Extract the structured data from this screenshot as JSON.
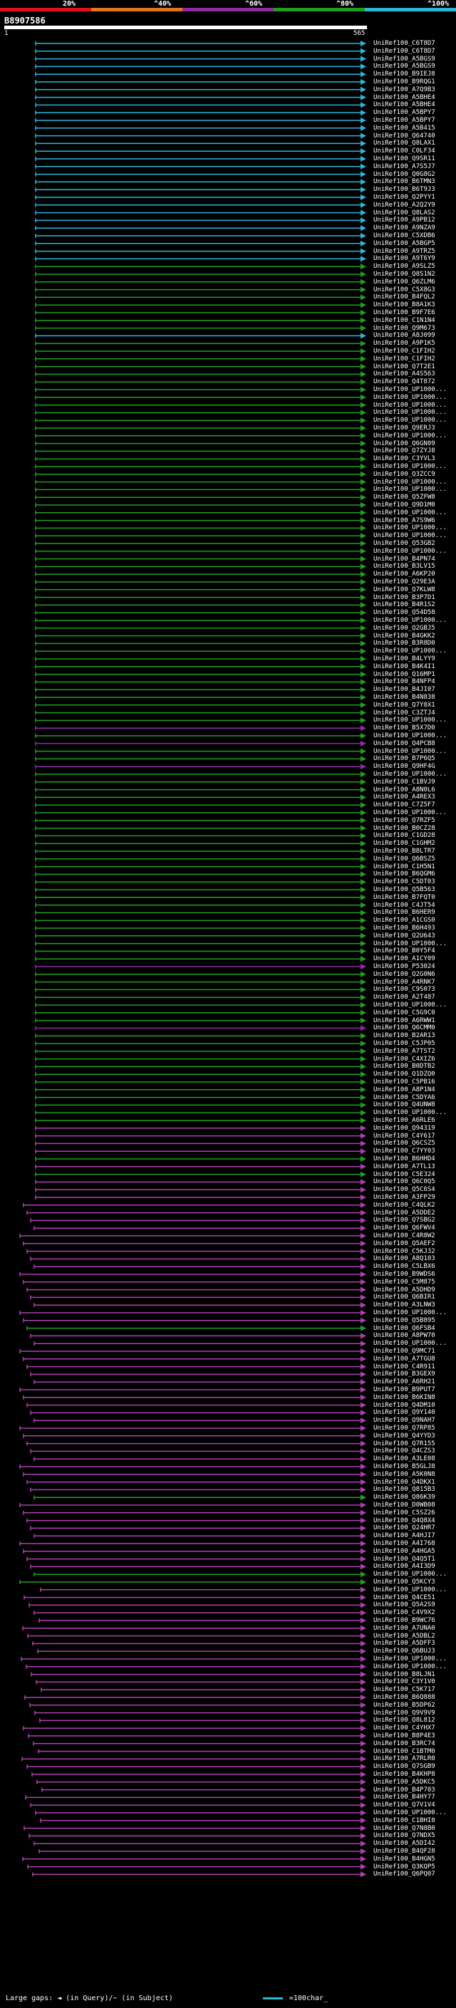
{
  "scale": {
    "labels": [
      "20%",
      "^40%",
      "^60%",
      "^80%",
      "^100%"
    ],
    "segments": [
      {
        "color": "#e01020"
      },
      {
        "color": "#e07818"
      },
      {
        "color": "#8c2ca0"
      },
      {
        "color": "#20a020"
      },
      {
        "color": "#28b8d8"
      }
    ]
  },
  "query": {
    "id": "B8907586",
    "start": "1",
    "end": "565"
  },
  "colors": {
    "cyan": "#28b8d8",
    "green": "#20a020",
    "magenta": "#b040b0",
    "purple": "#8c2ca0"
  },
  "hits": [
    {
      "label": "UniRef100_C6T8D7",
      "color": "cyan"
    },
    {
      "label": "UniRef100_C6T8D7",
      "color": "cyan"
    },
    {
      "label": "UniRef100_A5BGS9",
      "color": "cyan"
    },
    {
      "label": "UniRef100_A5BGS9",
      "color": "cyan"
    },
    {
      "label": "UniRef100_B9IEJ8",
      "color": "cyan"
    },
    {
      "label": "UniRef100_B9RQG1",
      "color": "cyan"
    },
    {
      "label": "UniRef100_A7Q9B3",
      "color": "cyan"
    },
    {
      "label": "UniRef100_A5BHE4",
      "color": "cyan"
    },
    {
      "label": "UniRef100_A5BHE4",
      "color": "cyan"
    },
    {
      "label": "UniRef100_A5BPY7",
      "color": "cyan"
    },
    {
      "label": "UniRef100_A5BPY7",
      "color": "cyan"
    },
    {
      "label": "UniRef100_A5B415",
      "color": "cyan"
    },
    {
      "label": "UniRef100_Q64740",
      "color": "cyan"
    },
    {
      "label": "UniRef100_Q8LAX1",
      "color": "cyan"
    },
    {
      "label": "UniRef100_C0LF34",
      "color": "cyan"
    },
    {
      "label": "UniRef100_Q9SR11",
      "color": "cyan"
    },
    {
      "label": "UniRef100_A7S5J7",
      "color": "cyan"
    },
    {
      "label": "UniRef100_Q0G8G2",
      "color": "cyan"
    },
    {
      "label": "UniRef100_B6TMN3",
      "color": "cyan"
    },
    {
      "label": "UniRef100_B6T9J3",
      "color": "cyan"
    },
    {
      "label": "UniRef100_Q2PYY1",
      "color": "cyan"
    },
    {
      "label": "UniRef100_A2Q2Y9",
      "color": "cyan"
    },
    {
      "label": "UniRef100_Q8LAS2",
      "color": "cyan"
    },
    {
      "label": "UniRef100_A9PB12",
      "color": "cyan"
    },
    {
      "label": "UniRef100_A9NZA9",
      "color": "cyan"
    },
    {
      "label": "UniRef100_C5XDB6",
      "color": "cyan"
    },
    {
      "label": "UniRef100_A5BGP5",
      "color": "cyan"
    },
    {
      "label": "UniRef100_A9TRZ5",
      "color": "cyan"
    },
    {
      "label": "UniRef100_A9T6Y9",
      "color": "cyan"
    },
    {
      "label": "UniRef100_A9SLZ5",
      "color": "green"
    },
    {
      "label": "UniRef100_Q8S1N2",
      "color": "green"
    },
    {
      "label": "UniRef100_Q6ZLM6",
      "color": "green"
    },
    {
      "label": "UniRef100_C5X8G3",
      "color": "green"
    },
    {
      "label": "UniRef100_B4FQL2",
      "color": "green"
    },
    {
      "label": "UniRef100_B8A1K3",
      "color": "green"
    },
    {
      "label": "UniRef100_B9F7E6",
      "color": "green"
    },
    {
      "label": "UniRef100_C1N1N4",
      "color": "green"
    },
    {
      "label": "UniRef100_Q9M673",
      "color": "green"
    },
    {
      "label": "UniRef100_A8J099",
      "color": "cyan"
    },
    {
      "label": "UniRef100_A9P1K5",
      "color": "green"
    },
    {
      "label": "UniRef100_C1FIH2",
      "color": "green"
    },
    {
      "label": "UniRef100_C1FIH2",
      "color": "green"
    },
    {
      "label": "UniRef100_Q7T2E1",
      "color": "green"
    },
    {
      "label": "UniRef100_A4S563",
      "color": "green"
    },
    {
      "label": "UniRef100_Q4T872",
      "color": "green"
    },
    {
      "label": "UniRef100_UP1000...",
      "color": "green"
    },
    {
      "label": "UniRef100_UP1000...",
      "color": "green"
    },
    {
      "label": "UniRef100_UP1000...",
      "color": "green"
    },
    {
      "label": "UniRef100_UP1000...",
      "color": "green"
    },
    {
      "label": "UniRef100_UP1000...",
      "color": "green"
    },
    {
      "label": "UniRef100_Q9ERJ3",
      "color": "green"
    },
    {
      "label": "UniRef100_UP1000...",
      "color": "green"
    },
    {
      "label": "UniRef100_Q6GN09",
      "color": "green"
    },
    {
      "label": "UniRef100_Q7ZYJ8",
      "color": "green"
    },
    {
      "label": "UniRef100_C3YVL3",
      "color": "green"
    },
    {
      "label": "UniRef100_UP1000...",
      "color": "green"
    },
    {
      "label": "UniRef100_Q3ZCC9",
      "color": "green"
    },
    {
      "label": "UniRef100_UP1000...",
      "color": "green"
    },
    {
      "label": "UniRef100_UP1000...",
      "color": "green"
    },
    {
      "label": "UniRef100_Q5ZFW8",
      "color": "green"
    },
    {
      "label": "UniRef100_Q9D1M0",
      "color": "green"
    },
    {
      "label": "UniRef100_UP1000...",
      "color": "green"
    },
    {
      "label": "UniRef100_A7S9W6",
      "color": "green"
    },
    {
      "label": "UniRef100_UP1000...",
      "color": "green"
    },
    {
      "label": "UniRef100_UP1000...",
      "color": "green"
    },
    {
      "label": "UniRef100_Q53GB2",
      "color": "green"
    },
    {
      "label": "UniRef100_UP1000...",
      "color": "green"
    },
    {
      "label": "UniRef100_B4PN74",
      "color": "green"
    },
    {
      "label": "UniRef100_B3LV15",
      "color": "green"
    },
    {
      "label": "UniRef100_A6KP20",
      "color": "green"
    },
    {
      "label": "UniRef100_Q29E3A",
      "color": "green"
    },
    {
      "label": "UniRef100_Q7KLW8",
      "color": "green"
    },
    {
      "label": "UniRef100_B3P7D1",
      "color": "green"
    },
    {
      "label": "UniRef100_B4R1S2",
      "color": "green"
    },
    {
      "label": "UniRef100_Q54D58",
      "color": "green"
    },
    {
      "label": "UniRef100_UP1000...",
      "color": "green"
    },
    {
      "label": "UniRef100_Q2GBJ5",
      "color": "green"
    },
    {
      "label": "UniRef100_B4GKK2",
      "color": "green"
    },
    {
      "label": "UniRef100_B3R8D0",
      "color": "green"
    },
    {
      "label": "UniRef100_UP1000...",
      "color": "green"
    },
    {
      "label": "UniRef100_B4LYY9",
      "color": "green"
    },
    {
      "label": "UniRef100_B4K4I1",
      "color": "green"
    },
    {
      "label": "UniRef100_Q16MP1",
      "color": "green"
    },
    {
      "label": "UniRef100_B4NFP4",
      "color": "green"
    },
    {
      "label": "UniRef100_B4JI07",
      "color": "green"
    },
    {
      "label": "UniRef100_B4N838",
      "color": "green"
    },
    {
      "label": "UniRef100_Q7Y8X1",
      "color": "green"
    },
    {
      "label": "UniRef100_C3ZTJ4",
      "color": "green"
    },
    {
      "label": "UniRef100_UP1000...",
      "color": "green"
    },
    {
      "label": "UniRef100_B5X7D0",
      "color": "purple"
    },
    {
      "label": "UniRef100_UP1000...",
      "color": "green"
    },
    {
      "label": "UniRef100_Q4PCB8",
      "color": "purple"
    },
    {
      "label": "UniRef100_UP1000...",
      "color": "green"
    },
    {
      "label": "UniRef100_B7P6Q5",
      "color": "green"
    },
    {
      "label": "UniRef100_Q9HF4G",
      "color": "purple"
    },
    {
      "label": "UniRef100_UP1000...",
      "color": "green"
    },
    {
      "label": "UniRef100_C1BVJ9",
      "color": "green"
    },
    {
      "label": "UniRef100_A8N0L6",
      "color": "green"
    },
    {
      "label": "UniRef100_A4REX3",
      "color": "green"
    },
    {
      "label": "UniRef100_C7Z5F7",
      "color": "green"
    },
    {
      "label": "UniRef100_UP1000...",
      "color": "green"
    },
    {
      "label": "UniRef100_Q7RZF5",
      "color": "green"
    },
    {
      "label": "UniRef100_B0CZ28",
      "color": "green"
    },
    {
      "label": "UniRef100_C1GD28",
      "color": "green"
    },
    {
      "label": "UniRef100_C1GHM2",
      "color": "green"
    },
    {
      "label": "UniRef100_B8LTR7",
      "color": "green"
    },
    {
      "label": "UniRef100_Q6BSZ5",
      "color": "green"
    },
    {
      "label": "UniRef100_C1H5N1",
      "color": "green"
    },
    {
      "label": "UniRef100_B6QGM6",
      "color": "green"
    },
    {
      "label": "UniRef100_C5DT03",
      "color": "green"
    },
    {
      "label": "UniRef100_Q5B563",
      "color": "green"
    },
    {
      "label": "UniRef100_B7FQT0",
      "color": "green"
    },
    {
      "label": "UniRef100_C4JT54",
      "color": "green"
    },
    {
      "label": "UniRef100_B6HER9",
      "color": "green"
    },
    {
      "label": "UniRef100_A1CGS0",
      "color": "green"
    },
    {
      "label": "UniRef100_B6H493",
      "color": "green"
    },
    {
      "label": "UniRef100_Q2U643",
      "color": "green"
    },
    {
      "label": "UniRef100_UP1000...",
      "color": "green"
    },
    {
      "label": "UniRef100_B0Y5F4",
      "color": "green"
    },
    {
      "label": "UniRef100_A1CY09",
      "color": "green"
    },
    {
      "label": "UniRef100_P53024",
      "color": "purple"
    },
    {
      "label": "UniRef100_Q2G0N6",
      "color": "green"
    },
    {
      "label": "UniRef100_A4RNK7",
      "color": "green"
    },
    {
      "label": "UniRef100_C9S073",
      "color": "green"
    },
    {
      "label": "UniRef100_A2T487",
      "color": "green"
    },
    {
      "label": "UniRef100_UP1000...",
      "color": "green"
    },
    {
      "label": "UniRef100_C5G9C0",
      "color": "green"
    },
    {
      "label": "UniRef100_A6RWW1",
      "color": "green"
    },
    {
      "label": "UniRef100_Q6CMM0",
      "color": "purple"
    },
    {
      "label": "UniRef100_B2AR13",
      "color": "green"
    },
    {
      "label": "UniRef100_C5JP05",
      "color": "green"
    },
    {
      "label": "UniRef100_A7TST2",
      "color": "green"
    },
    {
      "label": "UniRef100_C4XIZ6",
      "color": "green"
    },
    {
      "label": "UniRef100_B0DTB2",
      "color": "green"
    },
    {
      "label": "UniRef100_Q1DZQ0",
      "color": "green"
    },
    {
      "label": "UniRef100_C5PB16",
      "color": "green"
    },
    {
      "label": "UniRef100_A8P1N4",
      "color": "green"
    },
    {
      "label": "UniRef100_C5DYA6",
      "color": "green"
    },
    {
      "label": "UniRef100_Q4UNW8",
      "color": "green"
    },
    {
      "label": "UniRef100_UP1000...",
      "color": "green"
    },
    {
      "label": "UniRef100_A6RLE6",
      "color": "green"
    },
    {
      "label": "UniRef100_Q94319",
      "color": "magenta"
    },
    {
      "label": "UniRef100_C4Y617",
      "color": "magenta"
    },
    {
      "label": "UniRef100_Q6CSZ5",
      "color": "magenta"
    },
    {
      "label": "UniRef100_C7YY03",
      "color": "magenta"
    },
    {
      "label": "UniRef100_B6HHD4",
      "color": "green"
    },
    {
      "label": "UniRef100_A7TL13",
      "color": "magenta"
    },
    {
      "label": "UniRef100_C5E324",
      "color": "green"
    },
    {
      "label": "UniRef100_Q6C0Q5",
      "color": "magenta"
    },
    {
      "label": "UniRef100_Q5C6S4",
      "color": "magenta"
    },
    {
      "label": "UniRef100_A3FP29",
      "color": "magenta"
    },
    {
      "label": "UniRef100_C4QLK2",
      "color": "magenta"
    },
    {
      "label": "UniRef100_A5DDE2",
      "color": "magenta"
    },
    {
      "label": "UniRef100_Q7SBG2",
      "color": "magenta"
    },
    {
      "label": "UniRef100_Q6FWV4",
      "color": "magenta"
    },
    {
      "label": "UniRef100_C4R8W2",
      "color": "magenta"
    },
    {
      "label": "UniRef100_Q5AEF2",
      "color": "magenta"
    },
    {
      "label": "UniRef100_C5KJ32",
      "color": "magenta"
    },
    {
      "label": "UniRef100_A8Q103",
      "color": "magenta"
    },
    {
      "label": "UniRef100_C5LBX6",
      "color": "magenta"
    },
    {
      "label": "UniRef100_B9WDS6",
      "color": "magenta"
    },
    {
      "label": "UniRef100_C5M875",
      "color": "magenta"
    },
    {
      "label": "UniRef100_A5DHD9",
      "color": "magenta"
    },
    {
      "label": "UniRef100_Q6BIR1",
      "color": "magenta"
    },
    {
      "label": "UniRef100_A3LNW3",
      "color": "magenta"
    },
    {
      "label": "UniRef100_UP1000...",
      "color": "magenta"
    },
    {
      "label": "UniRef100_Q5B895",
      "color": "magenta"
    },
    {
      "label": "UniRef100_Q6FSB4",
      "color": "green"
    },
    {
      "label": "UniRef100_A8PW70",
      "color": "magenta"
    },
    {
      "label": "UniRef100_UP1000...",
      "color": "magenta"
    },
    {
      "label": "UniRef100_Q9MC71",
      "color": "magenta"
    },
    {
      "label": "UniRef100_A7TGU8",
      "color": "magenta"
    },
    {
      "label": "UniRef100_C4R911",
      "color": "magenta"
    },
    {
      "label": "UniRef100_B3GEX9",
      "color": "magenta"
    },
    {
      "label": "UniRef100_A6RH21",
      "color": "magenta"
    },
    {
      "label": "UniRef100_B9PUT7",
      "color": "magenta"
    },
    {
      "label": "UniRef100_B6KIN8",
      "color": "magenta"
    },
    {
      "label": "UniRef100_Q4DM10",
      "color": "magenta"
    },
    {
      "label": "UniRef100_Q9Y140",
      "color": "magenta"
    },
    {
      "label": "UniRef100_Q9NAH7",
      "color": "magenta"
    },
    {
      "label": "UniRef100_Q7RP85",
      "color": "magenta"
    },
    {
      "label": "UniRef100_Q4YYD3",
      "color": "magenta"
    },
    {
      "label": "UniRef100_Q7R155",
      "color": "magenta"
    },
    {
      "label": "UniRef100_Q4CZS3",
      "color": "magenta"
    },
    {
      "label": "UniRef100_A3LE08",
      "color": "magenta"
    },
    {
      "label": "UniRef100_B5GLJ8",
      "color": "magenta"
    },
    {
      "label": "UniRef100_A5K0N8",
      "color": "magenta"
    },
    {
      "label": "UniRef100_Q4DKX1",
      "color": "magenta"
    },
    {
      "label": "UniRef100_Q815B3",
      "color": "magenta"
    },
    {
      "label": "UniRef100_Q86K39",
      "color": "green"
    },
    {
      "label": "UniRef100_D0WB08",
      "color": "magenta"
    },
    {
      "label": "UniRef100_C5SZ26",
      "color": "magenta"
    },
    {
      "label": "UniRef100_Q4Q8X4",
      "color": "magenta"
    },
    {
      "label": "UniRef100_Q24HR7",
      "color": "magenta"
    },
    {
      "label": "UniRef100_A4HJI7",
      "color": "magenta"
    },
    {
      "label": "UniRef100_A4I768",
      "color": "magenta"
    },
    {
      "label": "UniRef100_A4HGA5",
      "color": "magenta"
    },
    {
      "label": "UniRef100_Q4Q5T1",
      "color": "magenta"
    },
    {
      "label": "UniRef100_A4I3D9",
      "color": "magenta"
    },
    {
      "label": "UniRef100_UP1000...",
      "color": "green"
    },
    {
      "label": "UniRef100_Q5KCY3",
      "color": "green"
    },
    {
      "label": "UniRef100_UP1000...",
      "color": "magenta"
    },
    {
      "label": "UniRef100_Q4CE51",
      "color": "magenta"
    },
    {
      "label": "UniRef100_Q5A2S9",
      "color": "magenta"
    },
    {
      "label": "UniRef100_C4V9X2",
      "color": "magenta"
    },
    {
      "label": "UniRef100_B9WC76",
      "color": "magenta"
    },
    {
      "label": "UniRef100_A7UNA0",
      "color": "magenta"
    },
    {
      "label": "UniRef100_A5DBL2",
      "color": "magenta"
    },
    {
      "label": "UniRef100_A5DFF3",
      "color": "magenta"
    },
    {
      "label": "UniRef100_Q6BUJ3",
      "color": "magenta"
    },
    {
      "label": "UniRef100_UP1000...",
      "color": "magenta"
    },
    {
      "label": "UniRef100_UP1000...",
      "color": "magenta"
    },
    {
      "label": "UniRef100_B8LJN1",
      "color": "magenta"
    },
    {
      "label": "UniRef100_C3Y1V0",
      "color": "magenta"
    },
    {
      "label": "UniRef100_C5K717",
      "color": "magenta"
    },
    {
      "label": "UniRef100_B6Q888",
      "color": "magenta"
    },
    {
      "label": "UniRef100_B5DP62",
      "color": "magenta"
    },
    {
      "label": "UniRef100_Q9V9V9",
      "color": "magenta"
    },
    {
      "label": "UniRef100_Q8L812",
      "color": "magenta"
    },
    {
      "label": "UniRef100_C4YHX7",
      "color": "magenta"
    },
    {
      "label": "UniRef100_B8P4E3",
      "color": "magenta"
    },
    {
      "label": "UniRef100_B3RC74",
      "color": "magenta"
    },
    {
      "label": "UniRef100_C1BTM0",
      "color": "magenta"
    },
    {
      "label": "UniRef100_A7RLR0",
      "color": "magenta"
    },
    {
      "label": "UniRef100_Q7SGB9",
      "color": "magenta"
    },
    {
      "label": "UniRef100_B4KHP8",
      "color": "magenta"
    },
    {
      "label": "UniRef100_A5DKC5",
      "color": "magenta"
    },
    {
      "label": "UniRef100_B4P703",
      "color": "magenta"
    },
    {
      "label": "UniRef100_B4HY77",
      "color": "magenta"
    },
    {
      "label": "UniRef100_Q7V1V4",
      "color": "magenta"
    },
    {
      "label": "UniRef100_UP1000...",
      "color": "magenta"
    },
    {
      "label": "UniRef100_C1BHI0",
      "color": "magenta"
    },
    {
      "label": "UniRef100_Q7N8B0",
      "color": "magenta"
    },
    {
      "label": "UniRef100_Q7NDX5",
      "color": "magenta"
    },
    {
      "label": "UniRef100_A5DI42",
      "color": "magenta"
    },
    {
      "label": "UniRef100_B4QF28",
      "color": "magenta"
    },
    {
      "label": "UniRef100_B4HGN5",
      "color": "magenta"
    },
    {
      "label": "UniRef100_Q3KQP5",
      "color": "magenta"
    },
    {
      "label": "UniRef100_Q6PQ07",
      "color": "magenta"
    }
  ],
  "footer": {
    "text": "Large gaps: ◄ (in Query)/~ (in Subject)",
    "scale_text": "=100char_"
  }
}
